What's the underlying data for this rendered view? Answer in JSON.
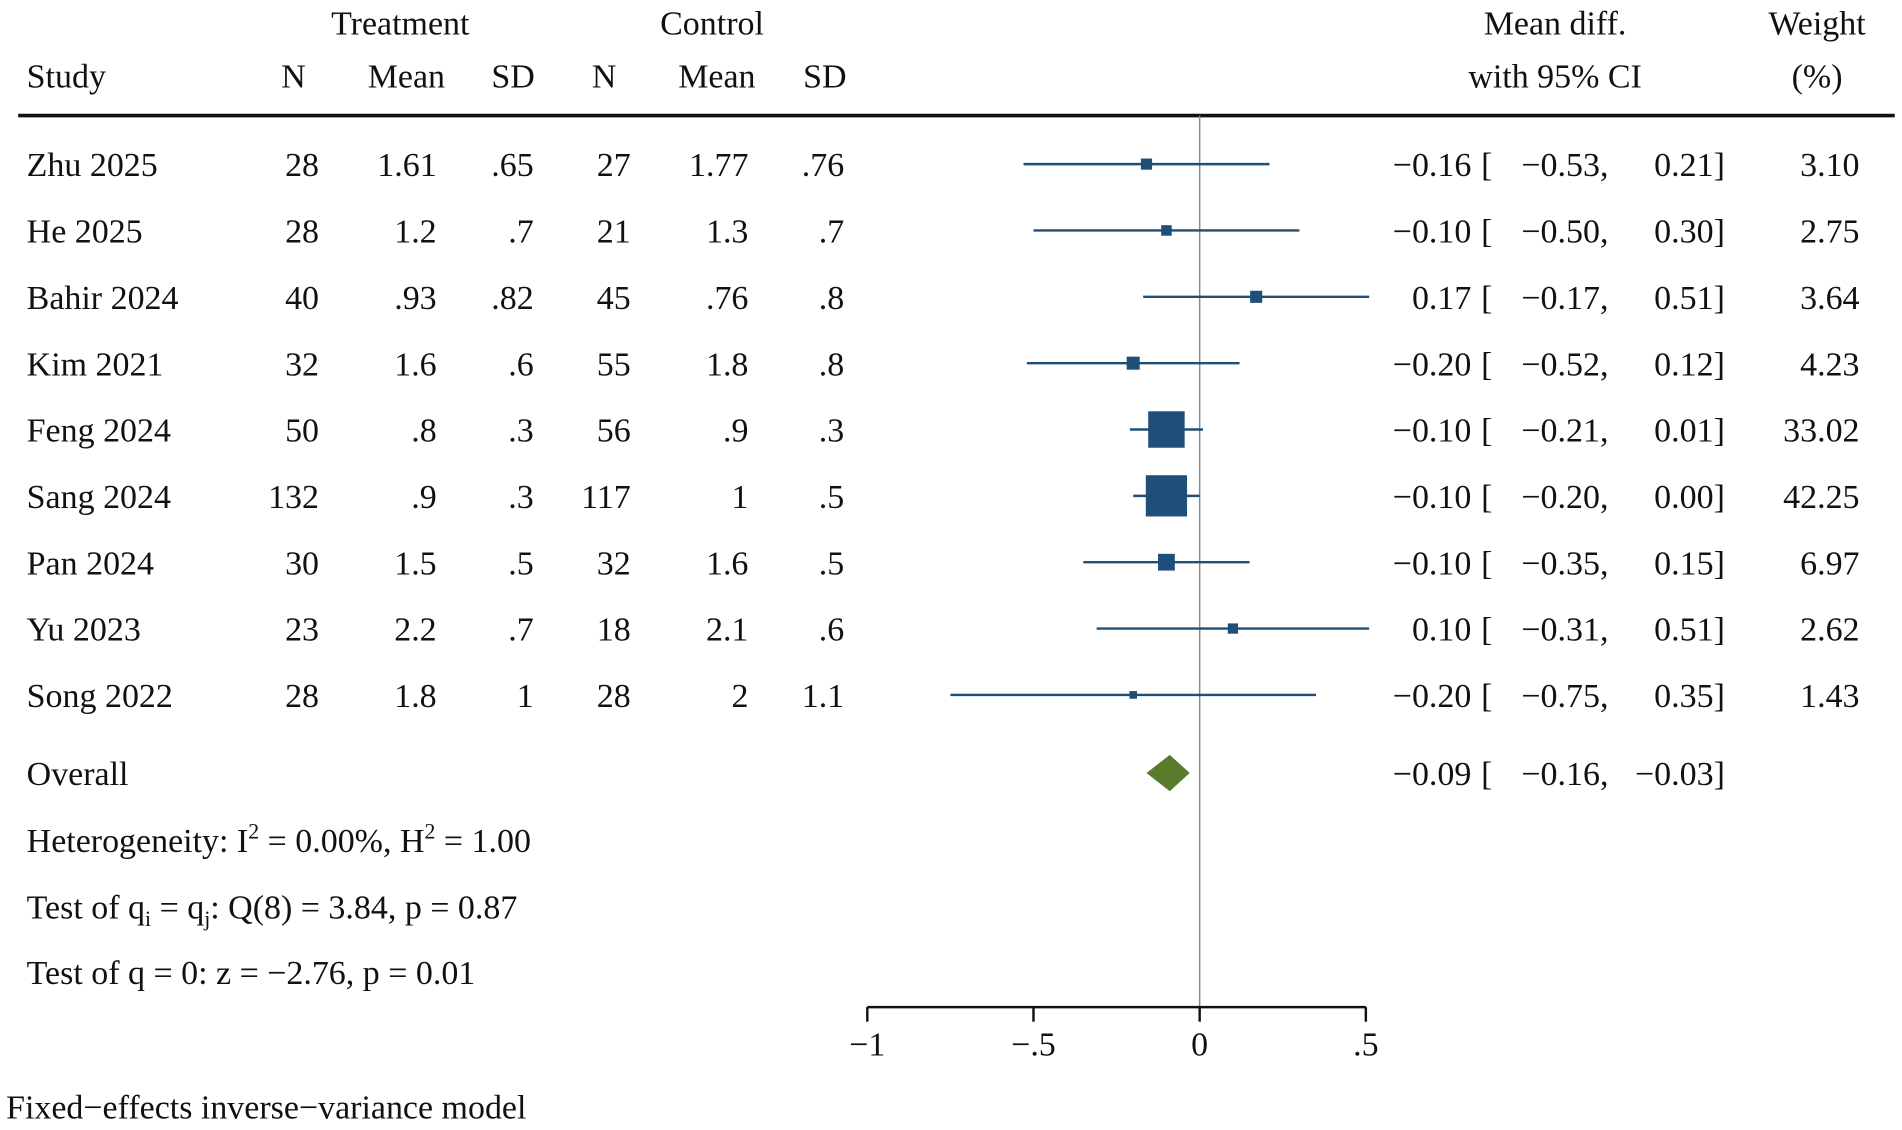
{
  "chart_data": {
    "type": "forest",
    "header": {
      "treatment": "Treatment",
      "control": "Control",
      "study": "Study",
      "n": "N",
      "mean": "Mean",
      "sd": "SD",
      "effect1": "Mean diff.",
      "effect2": "with 95% CI",
      "weight1": "Weight",
      "weight2": "(%)"
    },
    "studies": [
      {
        "name": "Zhu 2025",
        "tn": "28",
        "tmean": "1.61",
        "tsd": ".65",
        "cn": "27",
        "cmean": "1.77",
        "csd": ".76",
        "est": -0.16,
        "lo": -0.53,
        "hi": 0.21,
        "est_s": "−0.16",
        "lo_s": "−0.53,",
        "hi_s": "0.21]",
        "weight": "3.10"
      },
      {
        "name": "He 2025",
        "tn": "28",
        "tmean": "1.2",
        "tsd": ".7",
        "cn": "21",
        "cmean": "1.3",
        "csd": ".7",
        "est": -0.1,
        "lo": -0.5,
        "hi": 0.3,
        "est_s": "−0.10",
        "lo_s": "−0.50,",
        "hi_s": "0.30]",
        "weight": "2.75"
      },
      {
        "name": "Bahir 2024",
        "tn": "40",
        "tmean": ".93",
        "tsd": ".82",
        "cn": "45",
        "cmean": ".76",
        "csd": ".8",
        "est": 0.17,
        "lo": -0.17,
        "hi": 0.51,
        "est_s": "0.17",
        "lo_s": "−0.17,",
        "hi_s": "0.51]",
        "weight": "3.64"
      },
      {
        "name": "Kim 2021",
        "tn": "32",
        "tmean": "1.6",
        "tsd": ".6",
        "cn": "55",
        "cmean": "1.8",
        "csd": ".8",
        "est": -0.2,
        "lo": -0.52,
        "hi": 0.12,
        "est_s": "−0.20",
        "lo_s": "−0.52,",
        "hi_s": "0.12]",
        "weight": "4.23"
      },
      {
        "name": "Feng 2024",
        "tn": "50",
        "tmean": ".8",
        "tsd": ".3",
        "cn": "56",
        "cmean": ".9",
        "csd": ".3",
        "est": -0.1,
        "lo": -0.21,
        "hi": 0.01,
        "est_s": "−0.10",
        "lo_s": "−0.21,",
        "hi_s": "0.01]",
        "weight": "33.02"
      },
      {
        "name": "Sang 2024",
        "tn": "132",
        "tmean": ".9",
        "tsd": ".3",
        "cn": "117",
        "cmean": "1",
        "csd": ".5",
        "est": -0.1,
        "lo": -0.2,
        "hi": 0.0,
        "est_s": "−0.10",
        "lo_s": "−0.20,",
        "hi_s": "0.00]",
        "weight": "42.25"
      },
      {
        "name": "Pan 2024",
        "tn": "30",
        "tmean": "1.5",
        "tsd": ".5",
        "cn": "32",
        "cmean": "1.6",
        "csd": ".5",
        "est": -0.1,
        "lo": -0.35,
        "hi": 0.15,
        "est_s": "−0.10",
        "lo_s": "−0.35,",
        "hi_s": "0.15]",
        "weight": "6.97"
      },
      {
        "name": "Yu 2023",
        "tn": "23",
        "tmean": "2.2",
        "tsd": ".7",
        "cn": "18",
        "cmean": "2.1",
        "csd": ".6",
        "est": 0.1,
        "lo": -0.31,
        "hi": 0.51,
        "est_s": "0.10",
        "lo_s": "−0.31,",
        "hi_s": "0.51]",
        "weight": "2.62"
      },
      {
        "name": "Song 2022",
        "tn": "28",
        "tmean": "1.8",
        "tsd": "1",
        "cn": "28",
        "cmean": "2",
        "csd": "1.1",
        "est": -0.2,
        "lo": -0.75,
        "hi": 0.35,
        "est_s": "−0.20",
        "lo_s": "−0.75,",
        "hi_s": "0.35]",
        "weight": "1.43"
      }
    ],
    "overall": {
      "name": "Overall",
      "est": -0.09,
      "lo": -0.16,
      "hi": -0.03,
      "est_s": "−0.09",
      "lo_s": "−0.16,",
      "hi_s": "−0.03]"
    },
    "heterogeneity": {
      "prefix": "Heterogeneity: I",
      "sup1": "2",
      "mid": " = 0.00%, H",
      "sup2": "2",
      "suffix": " = 1.00"
    },
    "test_q": {
      "a": "Test of q",
      "sub1": "i",
      "b": " = q",
      "sub2": "j",
      "c": ": Q(8) = 3.84, p = 0.87"
    },
    "test_z": "Test of q = 0: z = −2.76, p = 0.01",
    "footnote": "Fixed−effects inverse−variance model",
    "xaxis": {
      "ticks": [
        -1,
        -0.5,
        0,
        0.5
      ],
      "tick_labels": [
        "−1",
        "−.5",
        "0",
        ".5"
      ],
      "range": [
        -1,
        0.5
      ]
    },
    "colors": {
      "marker": "#1f4e79",
      "diamond": "#5a7a2e",
      "refline": "#888888"
    }
  }
}
